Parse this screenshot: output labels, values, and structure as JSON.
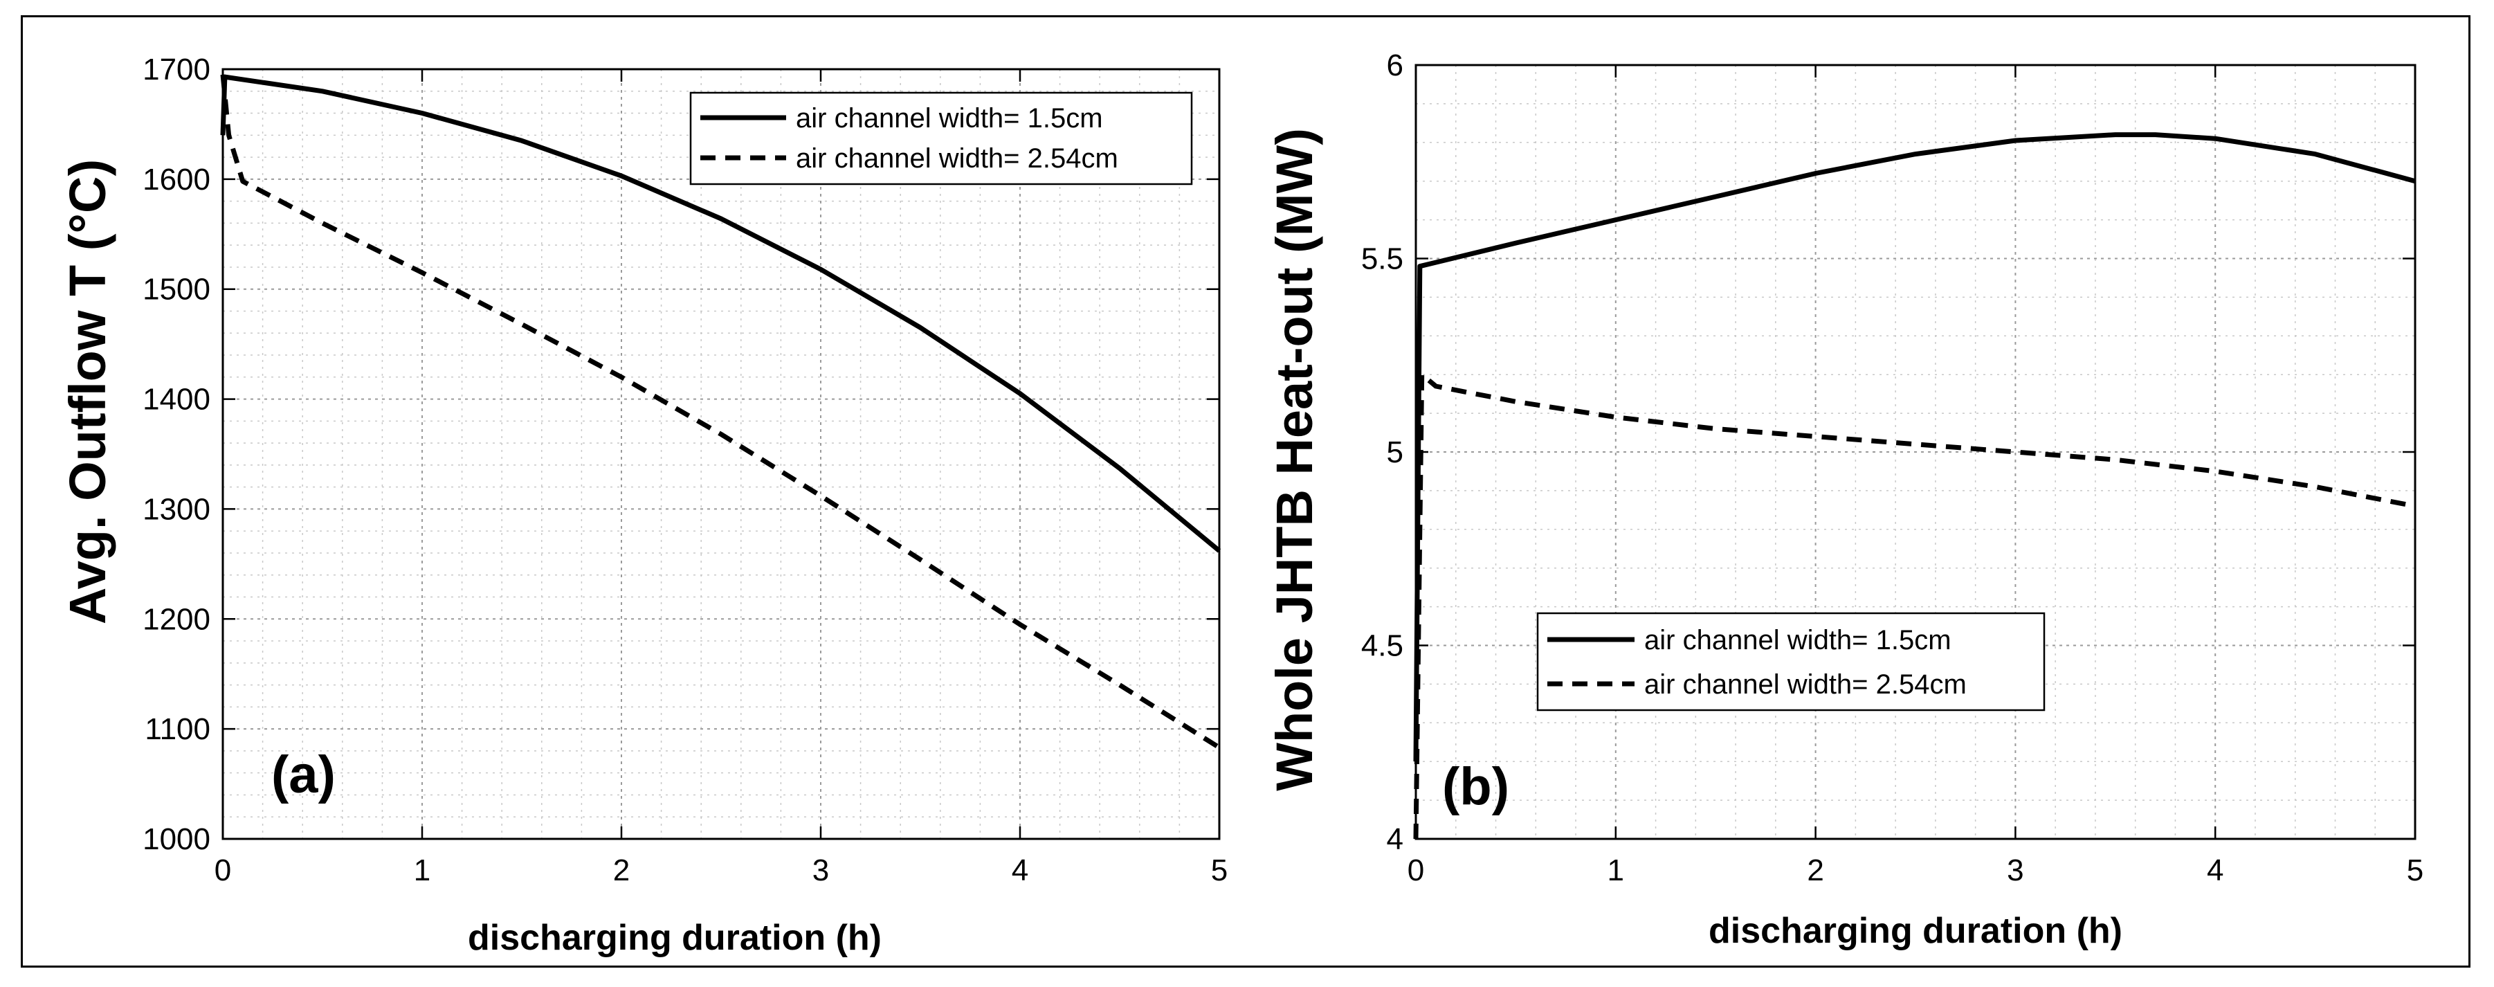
{
  "chart_data": [
    {
      "type": "line",
      "panel_label": "(a)",
      "xlabel": "discharging duration (h)",
      "ylabel": "Avg. Outflow T (°C)",
      "xlim": [
        0,
        5
      ],
      "ylim": [
        1000,
        1700
      ],
      "xticks": [
        0,
        1,
        2,
        3,
        4,
        5
      ],
      "yticks": [
        1000,
        1100,
        1200,
        1300,
        1400,
        1500,
        1600,
        1700
      ],
      "xtick_labels": [
        "0",
        "1",
        "2",
        "3",
        "4",
        "5"
      ],
      "ytick_labels": [
        "1000",
        "1100",
        "1200",
        "1300",
        "1400",
        "1500",
        "1600",
        "1700"
      ],
      "grid": true,
      "legend_position": "top-right",
      "series": [
        {
          "name": "air channel width= 1.5cm",
          "style": "solid",
          "x": [
            0,
            0.01,
            0.5,
            1,
            1.5,
            2,
            2.5,
            3,
            3.5,
            4,
            4.5,
            5
          ],
          "y": [
            1640,
            1693,
            1680,
            1660,
            1635,
            1603,
            1564,
            1518,
            1465,
            1405,
            1337,
            1262
          ]
        },
        {
          "name": "air channel width= 2.54cm",
          "style": "dashed",
          "x": [
            0,
            0.03,
            0.1,
            0.5,
            1,
            1.5,
            2,
            2.5,
            3,
            3.5,
            4,
            4.5,
            5
          ],
          "y": [
            1695,
            1640,
            1598,
            1560,
            1515,
            1468,
            1420,
            1368,
            1312,
            1254,
            1195,
            1140,
            1083
          ]
        }
      ],
      "colors": {
        "line": "#000000",
        "grid": "#c8c8c8"
      }
    },
    {
      "type": "line",
      "panel_label": "(b)",
      "xlabel": "discharging duration (h)",
      "ylabel": "Whole JHTB Heat-out (MW)",
      "xlim": [
        0,
        5
      ],
      "ylim": [
        4,
        6
      ],
      "xticks": [
        0,
        1,
        2,
        3,
        4,
        5
      ],
      "yticks": [
        4,
        4.5,
        5,
        5.5,
        6
      ],
      "xtick_labels": [
        "0",
        "1",
        "2",
        "3",
        "4",
        "5"
      ],
      "ytick_labels": [
        "4",
        "4.5",
        "5",
        "5.5",
        "6"
      ],
      "grid": true,
      "legend_position": "bottom-left",
      "series": [
        {
          "name": "air channel width= 1.5cm",
          "style": "solid",
          "x": [
            0,
            0.02,
            0.1,
            0.5,
            1,
            1.5,
            2,
            2.5,
            3,
            3.5,
            3.7,
            4,
            4.5,
            5
          ],
          "y": [
            4.2,
            5.48,
            5.49,
            5.54,
            5.6,
            5.66,
            5.72,
            5.77,
            5.805,
            5.82,
            5.82,
            5.81,
            5.77,
            5.7
          ]
        },
        {
          "name": "air channel width= 2.54cm",
          "style": "dashed",
          "x": [
            0,
            0.03,
            0.1,
            0.5,
            1,
            1.5,
            2,
            2.5,
            3,
            3.5,
            4,
            4.5,
            5
          ],
          "y": [
            4.0,
            5.2,
            5.17,
            5.13,
            5.09,
            5.06,
            5.04,
            5.02,
            5.0,
            4.98,
            4.95,
            4.91,
            4.86
          ]
        }
      ],
      "colors": {
        "line": "#000000",
        "grid": "#c8c8c8"
      }
    }
  ]
}
